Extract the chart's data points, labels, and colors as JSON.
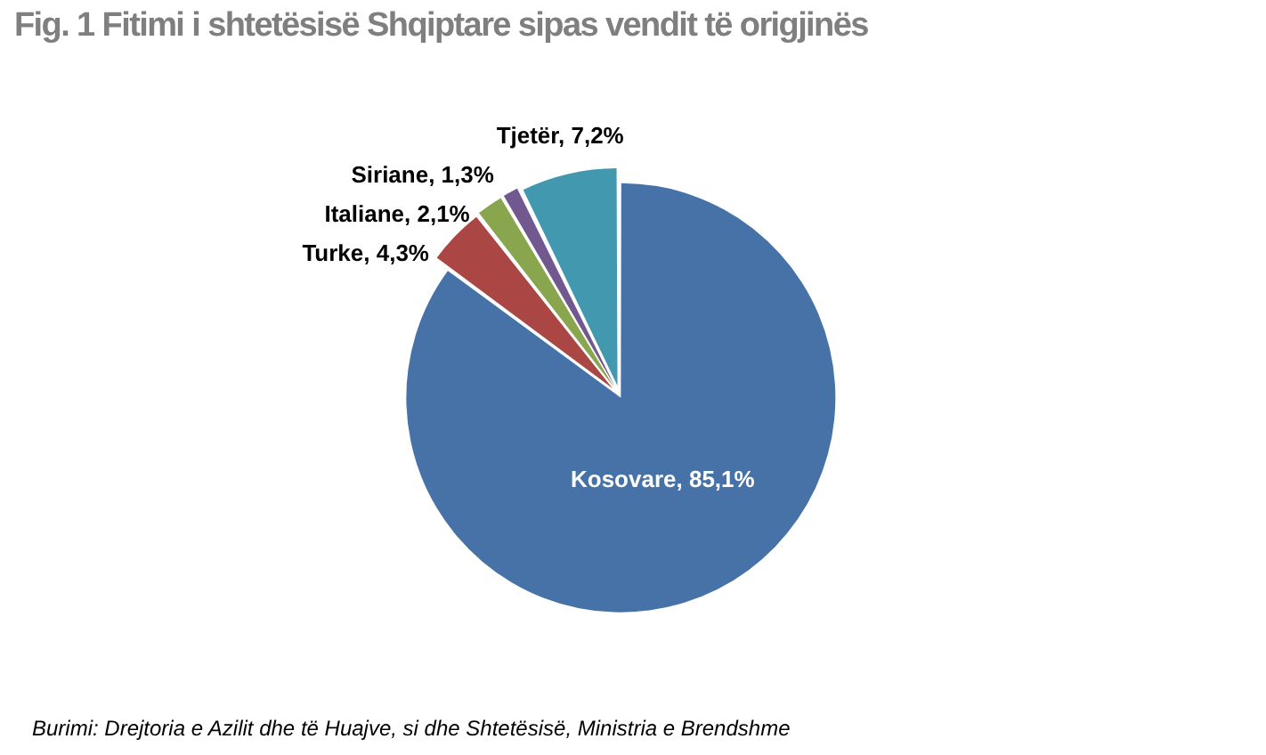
{
  "chart_data": {
    "type": "pie",
    "title": "Fig. 1 Fitimi i shtetësisë Shqiptare sipas vendit të origjinës",
    "categories": [
      "Kosovare",
      "Turke",
      "Italiane",
      "Siriane",
      "Tjetër"
    ],
    "values": [
      85.1,
      4.3,
      2.1,
      1.3,
      7.2
    ],
    "value_labels": [
      "85,1%",
      "4,3%",
      "2,1%",
      "1,3%",
      "7,2%"
    ],
    "colors": [
      "#4672a8",
      "#aa4643",
      "#89a54e",
      "#71588f",
      "#4198af"
    ],
    "legend": false,
    "annotations": [
      "Burimi: Drejtoria e Azilit dhe të Huajve, si dhe Shtetësisë, Ministria e Brendshme"
    ]
  }
}
